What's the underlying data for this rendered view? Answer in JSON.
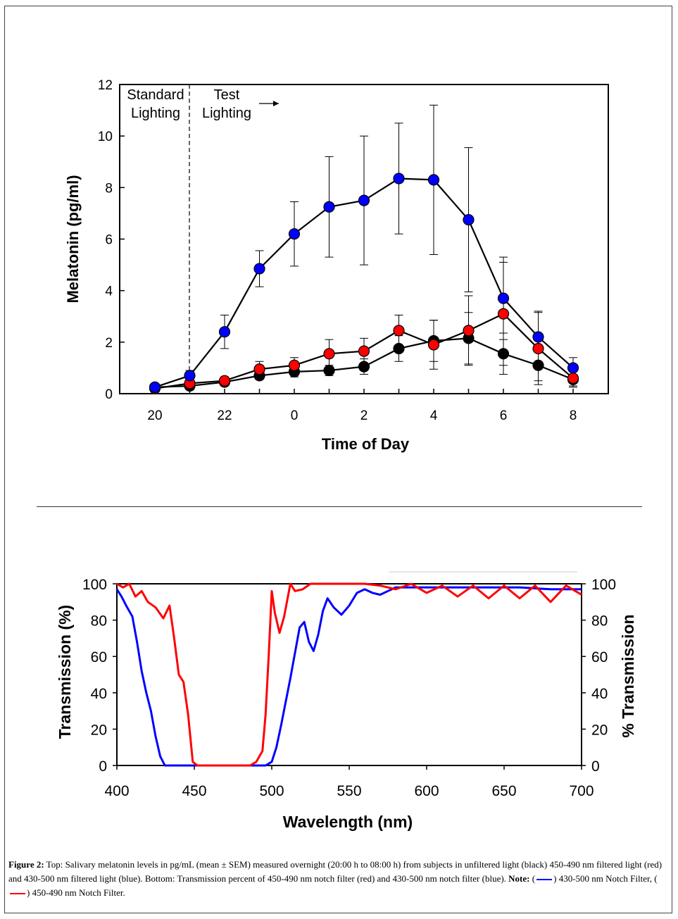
{
  "chart_data": [
    {
      "type": "line",
      "xlabel": "Time of Day",
      "ylabel": "Melatonin (pg/ml)",
      "ylim": [
        0,
        12
      ],
      "y_ticks": [
        0,
        2,
        4,
        6,
        8,
        10,
        12
      ],
      "x_ticks": [
        20,
        22,
        0,
        2,
        4,
        6,
        8
      ],
      "annotations": {
        "standard_1": "Standard",
        "standard_2": "Lighting",
        "test_1": "Test",
        "test_2": "Lighting"
      },
      "x_index": [
        0,
        1,
        2,
        3,
        4,
        5,
        6,
        7,
        8,
        9,
        10,
        11,
        12
      ],
      "series": [
        {
          "name": "unfiltered light (black)",
          "color": "#000000",
          "values": [
            0.25,
            0.3,
            0.45,
            0.7,
            0.85,
            0.9,
            1.05,
            1.75,
            2.05,
            2.15,
            1.55,
            1.1,
            0.55
          ],
          "errors": [
            0.1,
            0.1,
            0.1,
            0.15,
            0.2,
            0.2,
            0.3,
            0.5,
            0.8,
            1.0,
            0.8,
            0.6,
            0.3
          ]
        },
        {
          "name": "450-490 nm filtered light (red)",
          "color": "#ff0000",
          "values": [
            0.2,
            0.4,
            0.5,
            0.95,
            1.1,
            1.55,
            1.65,
            2.45,
            1.9,
            2.45,
            3.1,
            1.75,
            0.6
          ],
          "errors": [
            0.1,
            0.15,
            0.15,
            0.3,
            0.3,
            0.55,
            0.5,
            0.6,
            0.95,
            1.35,
            2.0,
            1.4,
            0.3
          ]
        },
        {
          "name": "430-500 nm filtered light (blue)",
          "color": "#0000ff",
          "values": [
            0.25,
            0.7,
            2.4,
            4.85,
            6.2,
            7.25,
            7.5,
            8.35,
            8.3,
            6.75,
            3.7,
            2.2,
            1.0
          ],
          "errors": [
            0.1,
            0.2,
            0.65,
            0.7,
            1.25,
            1.95,
            2.5,
            2.15,
            2.9,
            2.8,
            1.6,
            1.0,
            0.4
          ]
        }
      ]
    },
    {
      "type": "line",
      "xlabel": "Wavelength (nm)",
      "ylabel": "Transmission (%)",
      "ylabel_right": "% Transmission",
      "xlim": [
        400,
        700
      ],
      "ylim": [
        0,
        100
      ],
      "x_ticks": [
        400,
        450,
        500,
        550,
        600,
        650,
        700
      ],
      "y_ticks": [
        0,
        20,
        40,
        60,
        80,
        100
      ],
      "series": [
        {
          "name": "430-500 nm Notch Filter",
          "color": "#0000ff",
          "x": [
            400,
            403,
            406,
            410,
            413,
            416,
            419,
            422,
            425,
            428,
            431,
            435,
            440,
            450,
            460,
            470,
            480,
            490,
            496,
            500,
            503,
            506,
            509,
            512,
            515,
            518,
            521,
            524,
            527,
            530,
            533,
            536,
            540,
            545,
            550,
            555,
            560,
            565,
            570,
            575,
            580,
            590,
            600,
            620,
            640,
            660,
            680,
            700
          ],
          "y": [
            97,
            93,
            88,
            82,
            68,
            52,
            40,
            30,
            16,
            5,
            0,
            0,
            0,
            0,
            0,
            0,
            0,
            0,
            0,
            2,
            10,
            22,
            35,
            48,
            62,
            76,
            79,
            68,
            63,
            72,
            85,
            92,
            87,
            83,
            88,
            95,
            97,
            95,
            94,
            96,
            98,
            98,
            98,
            98,
            98,
            98,
            97,
            97
          ]
        },
        {
          "name": "450-490 nm Notch Filter",
          "color": "#ff0000",
          "x": [
            400,
            404,
            408,
            412,
            416,
            420,
            425,
            430,
            434,
            437,
            440,
            443,
            446,
            449,
            452,
            455,
            460,
            470,
            480,
            486,
            490,
            494,
            496,
            498,
            500,
            502,
            505,
            508,
            512,
            515,
            520,
            525,
            530,
            540,
            550,
            560,
            570,
            580,
            590,
            600,
            610,
            620,
            630,
            640,
            650,
            660,
            670,
            680,
            690,
            700
          ],
          "y": [
            100,
            98,
            100,
            93,
            96,
            90,
            87,
            81,
            88,
            70,
            50,
            46,
            28,
            2,
            0,
            0,
            0,
            0,
            0,
            0,
            2,
            8,
            28,
            60,
            96,
            84,
            73,
            82,
            100,
            96,
            97,
            100,
            100,
            100,
            100,
            100,
            99,
            97,
            100,
            95,
            99,
            93,
            99,
            92,
            99,
            92,
            99,
            90,
            99,
            94
          ]
        }
      ]
    }
  ],
  "caption": {
    "figure_label": "Figure 2:",
    "text": " Top: Salivary melatonin levels in pg/mL (mean ± SEM) measured overnight (20:00 h to 08:00 h) from subjects in unfiltered light (black) 450-490 nm filtered light (red) and 430-500 nm filtered light (blue). Bottom: Transmission percent of 450-490 nm notch filter (red) and 430-500 nm notch filter (blue). ",
    "note_label": "Note:",
    "legend_blue": "430-500 nm Notch Filter,",
    "legend_red": "450-490 nm Notch Filter."
  },
  "colors": {
    "blue": "#0000ff",
    "red": "#ff0000",
    "black": "#000000"
  }
}
